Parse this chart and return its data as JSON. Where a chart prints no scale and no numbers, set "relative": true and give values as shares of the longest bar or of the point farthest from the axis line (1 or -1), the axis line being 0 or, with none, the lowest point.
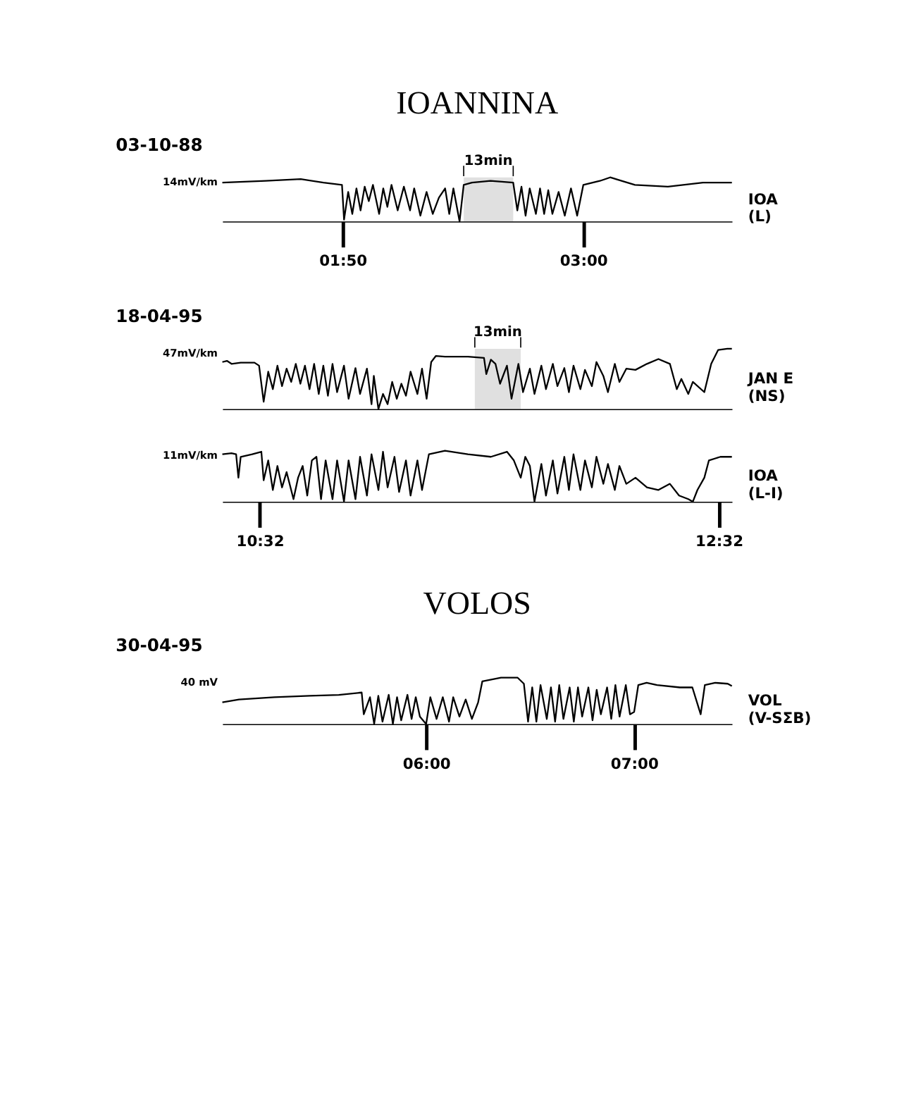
{
  "chart_data": [
    {
      "type": "line",
      "title": "IOANNINA",
      "subtitle": "03-10-88",
      "relative": true,
      "tick_labels": "x",
      "grid": false,
      "legend": false,
      "xlim": [
        1.25,
        3.72
      ],
      "xticks": [
        {
          "value": 1.8333,
          "label": "01:50"
        },
        {
          "value": 3,
          "label": "03:00"
        }
      ],
      "annotations": [
        "14mV/km"
      ],
      "bands": [
        {
          "axis": "x",
          "from": 2.42,
          "to": 2.66,
          "label": "13min"
        }
      ],
      "series": [
        {
          "name": "IOA\n(L)",
          "color": "#000000",
          "x": [
            1.25,
            1.46,
            1.63,
            1.74,
            1.83,
            1.84,
            1.86,
            1.88,
            1.9,
            1.92,
            1.94,
            1.96,
            1.98,
            2.01,
            2.03,
            2.05,
            2.07,
            2.1,
            2.13,
            2.16,
            2.18,
            2.21,
            2.24,
            2.27,
            2.3,
            2.33,
            2.35,
            2.37,
            2.4,
            2.42,
            2.46,
            2.55,
            2.66,
            2.68,
            2.7,
            2.72,
            2.74,
            2.77,
            2.79,
            2.81,
            2.83,
            2.85,
            2.88,
            2.91,
            2.94,
            2.97,
            3.0,
            3.08,
            3.13,
            3.25,
            3.41,
            3.58,
            3.72
          ],
          "values": [
            0.88,
            0.92,
            0.96,
            0.88,
            0.83,
            0.04,
            0.67,
            0.17,
            0.75,
            0.25,
            0.79,
            0.46,
            0.83,
            0.17,
            0.75,
            0.33,
            0.83,
            0.25,
            0.79,
            0.25,
            0.75,
            0.13,
            0.67,
            0.17,
            0.54,
            0.75,
            0.17,
            0.75,
            0,
            0.83,
            0.88,
            0.92,
            0.88,
            0.25,
            0.79,
            0.13,
            0.75,
            0.17,
            0.75,
            0.17,
            0.71,
            0.17,
            0.67,
            0.13,
            0.75,
            0.13,
            0.83,
            0.92,
            1,
            0.83,
            0.79,
            0.88,
            0.88
          ]
        }
      ]
    },
    {
      "type": "line",
      "subtitle": "18-04-95",
      "relative": true,
      "tick_labels": false,
      "grid": false,
      "legend": false,
      "xlim": [
        10.37,
        12.59
      ],
      "annotations": [
        "47mV/km"
      ],
      "bands": [
        {
          "axis": "x",
          "from": 11.47,
          "to": 11.67,
          "label": "13min"
        }
      ],
      "series": [
        {
          "name": "JAN E\n(NS)",
          "color": "#000000",
          "x": [
            10.37,
            10.39,
            10.41,
            10.45,
            10.51,
            10.53,
            10.55,
            10.57,
            10.59,
            10.61,
            10.63,
            10.65,
            10.67,
            10.69,
            10.71,
            10.73,
            10.75,
            10.77,
            10.79,
            10.81,
            10.83,
            10.85,
            10.87,
            10.9,
            10.92,
            10.95,
            10.97,
            11.0,
            11.02,
            11.03,
            11.05,
            11.07,
            11.09,
            11.11,
            11.13,
            11.15,
            11.17,
            11.19,
            11.22,
            11.24,
            11.26,
            11.28,
            11.3,
            11.34,
            11.44,
            11.51,
            11.52,
            11.54,
            11.56,
            11.58,
            11.61,
            11.63,
            11.66,
            11.68,
            11.71,
            11.73,
            11.76,
            11.78,
            11.81,
            11.83,
            11.86,
            11.88,
            11.9,
            11.93,
            11.95,
            11.98,
            12.0,
            12.03,
            12.05,
            12.08,
            12.1,
            12.13,
            12.17,
            12.22,
            12.27,
            12.32,
            12.35,
            12.37,
            12.4,
            12.42,
            12.47,
            12.5,
            12.53,
            12.57,
            12.59
          ],
          "values": [
            0.78,
            0.8,
            0.75,
            0.77,
            0.77,
            0.72,
            0.12,
            0.62,
            0.33,
            0.72,
            0.38,
            0.67,
            0.45,
            0.75,
            0.42,
            0.72,
            0.33,
            0.75,
            0.25,
            0.72,
            0.22,
            0.75,
            0.28,
            0.72,
            0.17,
            0.68,
            0.25,
            0.67,
            0.08,
            0.55,
            0,
            0.25,
            0.08,
            0.45,
            0.17,
            0.42,
            0.22,
            0.62,
            0.25,
            0.67,
            0.17,
            0.78,
            0.88,
            0.87,
            0.87,
            0.85,
            0.58,
            0.82,
            0.75,
            0.42,
            0.72,
            0.17,
            0.75,
            0.28,
            0.67,
            0.25,
            0.72,
            0.33,
            0.75,
            0.38,
            0.68,
            0.28,
            0.72,
            0.33,
            0.65,
            0.38,
            0.78,
            0.55,
            0.28,
            0.75,
            0.45,
            0.67,
            0.65,
            0.75,
            0.83,
            0.75,
            0.33,
            0.5,
            0.25,
            0.45,
            0.28,
            0.75,
            0.98,
            1,
            1
          ]
        }
      ]
    },
    {
      "type": "line",
      "relative": true,
      "tick_labels": "x",
      "grid": false,
      "legend": false,
      "xlim": [
        10.37,
        12.59
      ],
      "xticks": [
        {
          "value": 10.5333,
          "label": "10:32"
        },
        {
          "value": 12.5333,
          "label": "12:32"
        }
      ],
      "annotations": [
        "11mV/km"
      ],
      "series": [
        {
          "name": "IOA\n(L-I)",
          "color": "#000000",
          "x": [
            10.37,
            10.41,
            10.43,
            10.44,
            10.45,
            10.5,
            10.54,
            10.55,
            10.57,
            10.59,
            10.61,
            10.63,
            10.65,
            10.68,
            10.7,
            10.72,
            10.74,
            10.76,
            10.78,
            10.8,
            10.82,
            10.85,
            10.87,
            10.9,
            10.92,
            10.95,
            10.97,
            11.0,
            11.02,
            11.05,
            11.07,
            11.09,
            11.12,
            11.14,
            11.17,
            11.19,
            11.22,
            11.24,
            11.27,
            11.34,
            11.44,
            11.54,
            11.61,
            11.64,
            11.67,
            11.69,
            11.71,
            11.73,
            11.76,
            11.78,
            11.81,
            11.83,
            11.86,
            11.88,
            11.9,
            11.93,
            11.95,
            11.98,
            12.0,
            12.03,
            12.05,
            12.08,
            12.1,
            12.13,
            12.17,
            12.22,
            12.27,
            12.32,
            12.36,
            12.4,
            12.42,
            12.44,
            12.47,
            12.49,
            12.54,
            12.59
          ],
          "values": [
            0.93,
            0.95,
            0.93,
            0.47,
            0.88,
            0.93,
            0.98,
            0.42,
            0.81,
            0.23,
            0.7,
            0.28,
            0.58,
            0.05,
            0.47,
            0.7,
            0.12,
            0.81,
            0.88,
            0.05,
            0.81,
            0.05,
            0.81,
            0,
            0.81,
            0.05,
            0.88,
            0.12,
            0.93,
            0.23,
            0.98,
            0.28,
            0.88,
            0.19,
            0.81,
            0.12,
            0.81,
            0.23,
            0.93,
            1,
            0.93,
            0.88,
            0.98,
            0.81,
            0.47,
            0.88,
            0.7,
            0,
            0.74,
            0.12,
            0.81,
            0.16,
            0.88,
            0.23,
            0.93,
            0.23,
            0.81,
            0.28,
            0.88,
            0.35,
            0.74,
            0.23,
            0.7,
            0.35,
            0.47,
            0.28,
            0.23,
            0.35,
            0.12,
            0.05,
            0,
            0.23,
            0.47,
            0.81,
            0.88,
            0.88
          ]
        }
      ]
    },
    {
      "type": "line",
      "title": "VOLOS",
      "subtitle": "30-04-95",
      "relative": true,
      "tick_labels": "x",
      "grid": false,
      "legend": false,
      "xlim": [
        5.02,
        7.47
      ],
      "xticks": [
        {
          "value": 6,
          "label": "06:00"
        },
        {
          "value": 7,
          "label": "07:00"
        }
      ],
      "annotations": [
        "40 mV"
      ],
      "series": [
        {
          "name": "VOL\n(V-SΣB)",
          "color": "#000000",
          "x": [
            5.02,
            5.1,
            5.27,
            5.44,
            5.58,
            5.69,
            5.7,
            5.73,
            5.75,
            5.77,
            5.79,
            5.82,
            5.84,
            5.86,
            5.88,
            5.91,
            5.93,
            5.95,
            5.97,
            6.0,
            6.02,
            6.05,
            6.08,
            6.11,
            6.13,
            6.16,
            6.19,
            6.22,
            6.25,
            6.27,
            6.36,
            6.44,
            6.47,
            6.49,
            6.51,
            6.53,
            6.55,
            6.58,
            6.6,
            6.62,
            6.64,
            6.66,
            6.69,
            6.71,
            6.73,
            6.75,
            6.78,
            6.8,
            6.82,
            6.84,
            6.87,
            6.89,
            6.91,
            6.93,
            6.96,
            6.98,
            7.0,
            7.02,
            7.06,
            7.11,
            7.22,
            7.28,
            7.32,
            7.34,
            7.39,
            7.45,
            7.47
          ],
          "values": [
            0.47,
            0.53,
            0.58,
            0.61,
            0.63,
            0.68,
            0.21,
            0.58,
            0,
            0.61,
            0.05,
            0.63,
            0,
            0.58,
            0.08,
            0.63,
            0.11,
            0.58,
            0.16,
            0,
            0.58,
            0.11,
            0.58,
            0.05,
            0.58,
            0.16,
            0.53,
            0.11,
            0.47,
            0.92,
            1,
            1,
            0.87,
            0.05,
            0.79,
            0.05,
            0.84,
            0.11,
            0.79,
            0.05,
            0.84,
            0.11,
            0.79,
            0.05,
            0.79,
            0.16,
            0.79,
            0.08,
            0.74,
            0.21,
            0.79,
            0.11,
            0.84,
            0.16,
            0.84,
            0.21,
            0.26,
            0.84,
            0.89,
            0.84,
            0.79,
            0.79,
            0.21,
            0.84,
            0.89,
            0.87,
            0.82
          ]
        }
      ]
    }
  ]
}
